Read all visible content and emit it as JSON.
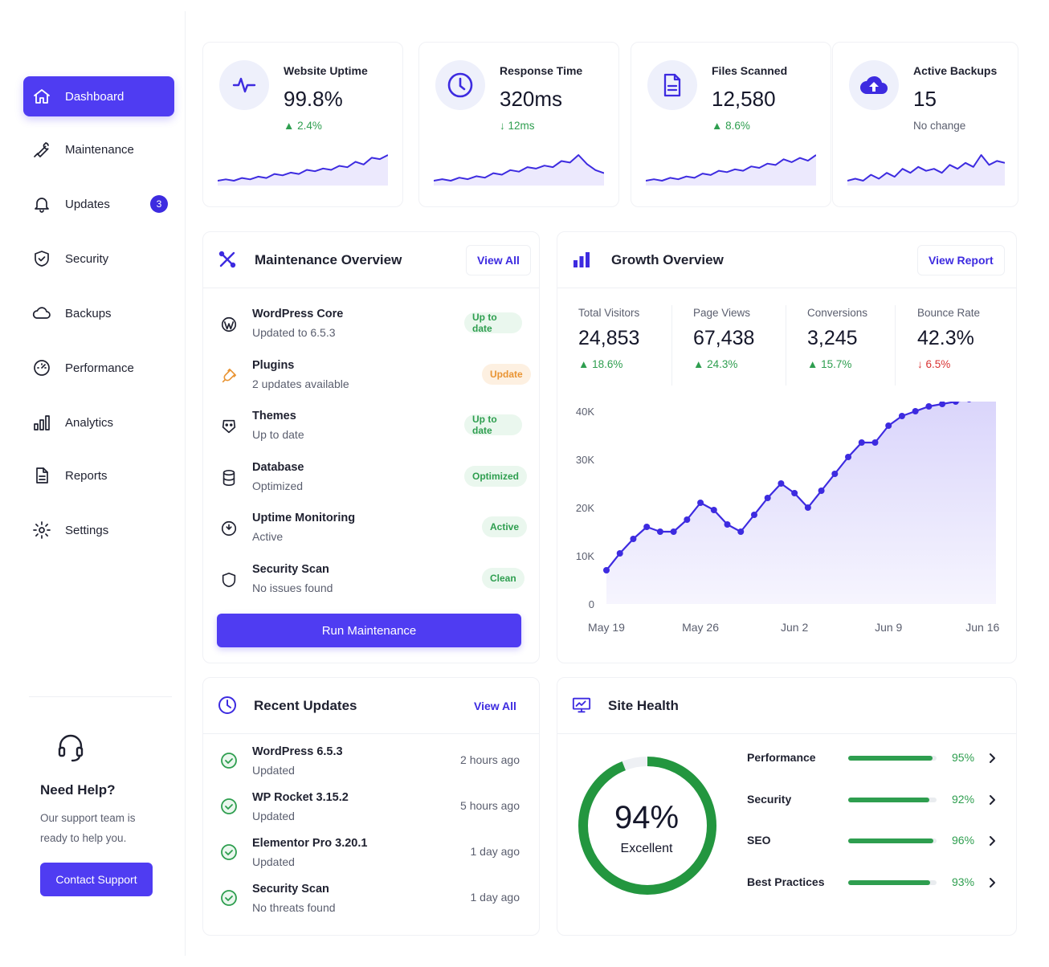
{
  "colors": {
    "accent": "#4f3cf2",
    "success": "#2e9e4f",
    "danger": "#d93232",
    "warning": "#e99433"
  },
  "sidebar": {
    "items": [
      {
        "label": "Dashboard",
        "icon": "home-icon",
        "active": true
      },
      {
        "label": "Maintenance",
        "icon": "wrench-icon"
      },
      {
        "label": "Updates",
        "icon": "bell-icon",
        "badge": "3"
      },
      {
        "label": "Security",
        "icon": "shield-icon"
      },
      {
        "label": "Backups",
        "icon": "cloud-icon"
      },
      {
        "label": "Performance",
        "icon": "gauge-icon"
      },
      {
        "label": "Analytics",
        "icon": "bar-chart-icon"
      },
      {
        "label": "Reports",
        "icon": "document-icon"
      },
      {
        "label": "Settings",
        "icon": "gear-icon"
      }
    ],
    "help": {
      "title": "Need Help?",
      "text": "Our support team is ready to help you.",
      "button": "Contact Support",
      "icon": "headset-icon"
    }
  },
  "stats": [
    {
      "label": "Website Uptime",
      "value": "99.8%",
      "delta": "2.4%",
      "direction": "up",
      "icon": "pulse-icon",
      "spark": [
        4,
        5,
        4,
        6,
        5,
        7,
        6,
        9,
        8,
        10,
        9,
        12,
        11,
        13,
        12,
        15,
        14,
        18,
        16,
        21,
        20,
        23
      ]
    },
    {
      "label": "Response Time",
      "value": "320ms",
      "delta": "12ms",
      "direction": "down",
      "icon": "clock-icon",
      "spark": [
        5,
        6,
        5,
        7,
        6,
        8,
        7,
        10,
        9,
        12,
        11,
        14,
        13,
        15,
        14,
        18,
        17,
        22,
        16,
        12,
        10
      ]
    },
    {
      "label": "Files Scanned",
      "value": "12,580",
      "delta": "8.6%",
      "direction": "up",
      "icon": "file-icon",
      "spark": [
        4,
        5,
        4,
        6,
        5,
        7,
        6,
        9,
        8,
        11,
        10,
        12,
        11,
        14,
        13,
        16,
        15,
        19,
        17,
        20,
        18,
        22
      ]
    },
    {
      "label": "Active Backups",
      "value": "15",
      "delta": "No change",
      "direction": "none",
      "icon": "cloud-upload-icon",
      "spark": [
        5,
        6,
        5,
        8,
        6,
        9,
        7,
        11,
        9,
        12,
        10,
        11,
        9,
        13,
        11,
        14,
        12,
        18,
        13,
        15,
        14
      ]
    }
  ],
  "maintenance": {
    "title": "Maintenance Overview",
    "link": "View All",
    "items": [
      {
        "title": "WordPress Core",
        "sub": "Updated to 6.5.3",
        "status": "Up to date",
        "tone": "green",
        "icon": "wordpress-icon"
      },
      {
        "title": "Plugins",
        "sub": "2 updates available",
        "status": "Update",
        "tone": "orange",
        "icon": "plugin-icon"
      },
      {
        "title": "Themes",
        "sub": "Up to date",
        "status": "Up to date",
        "tone": "green",
        "icon": "palette-icon"
      },
      {
        "title": "Database",
        "sub": "Optimized",
        "status": "Optimized",
        "tone": "green",
        "icon": "database-icon"
      },
      {
        "title": "Uptime Monitoring",
        "sub": "Active",
        "status": "Active",
        "tone": "green",
        "icon": "monitor-icon"
      },
      {
        "title": "Security Scan",
        "sub": "No issues found",
        "status": "Clean",
        "tone": "green",
        "icon": "shield-icon"
      }
    ],
    "button": "Run Maintenance"
  },
  "growth": {
    "title": "Growth Overview",
    "link": "View Report",
    "metrics": [
      {
        "label": "Total Visitors",
        "value": "24,853",
        "delta": "18.6%",
        "direction": "up"
      },
      {
        "label": "Page Views",
        "value": "67,438",
        "delta": "24.3%",
        "direction": "up"
      },
      {
        "label": "Conversions",
        "value": "3,245",
        "delta": "15.7%",
        "direction": "up"
      },
      {
        "label": "Bounce Rate",
        "value": "42.3%",
        "delta": "6.5%",
        "direction": "down"
      }
    ]
  },
  "chart_data": {
    "type": "area",
    "x": [
      "May 19",
      "May 20",
      "May 21",
      "May 22",
      "May 23",
      "May 24",
      "May 25",
      "May 26",
      "May 27",
      "May 28",
      "May 29",
      "May 30",
      "May 31",
      "Jun 1",
      "Jun 2",
      "Jun 3",
      "Jun 4",
      "Jun 5",
      "Jun 6",
      "Jun 7",
      "Jun 8",
      "Jun 9",
      "Jun 10",
      "Jun 11",
      "Jun 12",
      "Jun 13",
      "Jun 14",
      "Jun 15",
      "Jun 16",
      "Jun 17"
    ],
    "values": [
      7000,
      10500,
      13500,
      16000,
      15000,
      15000,
      17500,
      21000,
      19500,
      16500,
      15000,
      18500,
      22000,
      25000,
      23000,
      20000,
      23500,
      27000,
      30500,
      33500,
      33500,
      37000,
      39000,
      40000,
      41000,
      41500,
      42000,
      42500,
      43000,
      43500
    ],
    "xticks": [
      "May 19",
      "May 26",
      "Jun 2",
      "Jun 9",
      "Jun 16"
    ],
    "yticks": [
      "0",
      "10K",
      "20K",
      "30K",
      "40K"
    ],
    "ylim": [
      0,
      40000
    ],
    "grid": false
  },
  "updates": {
    "title": "Recent Updates",
    "link": "View All",
    "items": [
      {
        "title": "WordPress 6.5.3",
        "sub": "Updated",
        "time": "2 hours ago"
      },
      {
        "title": "WP Rocket 3.15.2",
        "sub": "Updated",
        "time": "5 hours ago"
      },
      {
        "title": "Elementor Pro 3.20.1",
        "sub": "Updated",
        "time": "1 day ago"
      },
      {
        "title": "Security Scan",
        "sub": "No threats found",
        "time": "1 day ago"
      }
    ]
  },
  "health": {
    "title": "Site Health",
    "score": "94%",
    "score_value": 94,
    "score_label": "Excellent",
    "items": [
      {
        "label": "Performance",
        "value": "95%",
        "pct": 95
      },
      {
        "label": "Security",
        "value": "92%",
        "pct": 92
      },
      {
        "label": "SEO",
        "value": "96%",
        "pct": 96
      },
      {
        "label": "Best Practices",
        "value": "93%",
        "pct": 93
      }
    ]
  }
}
